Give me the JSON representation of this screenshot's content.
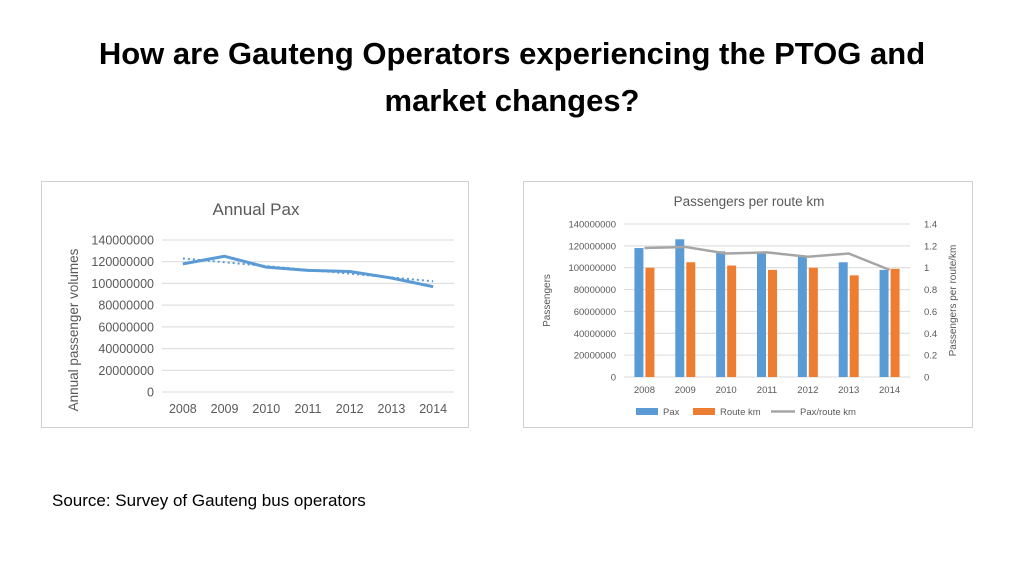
{
  "slide": {
    "title": "How are Gauteng Operators experiencing the PTOG and market changes?",
    "source": "Source: Survey of Gauteng bus operators"
  },
  "colors": {
    "pax_bar": "#5b9bd5",
    "route_bar": "#ed7d31",
    "ratio_line": "#a5a5a5",
    "annual_line": "#5b9bd5",
    "grid": "#d9d9d9",
    "axis_text": "#595959"
  },
  "chart_data": [
    {
      "type": "line",
      "title": "Annual Pax",
      "xlabel": "",
      "ylabel": "Annual passenger volumes",
      "categories": [
        "2008",
        "2009",
        "2010",
        "2011",
        "2012",
        "2013",
        "2014"
      ],
      "series": [
        {
          "values": [
            118000000,
            125000000,
            115000000,
            112000000,
            111000000,
            105000000,
            97000000
          ]
        }
      ],
      "trendline": {
        "style": "dotted",
        "values": [
          123000000,
          119500000,
          116000000,
          112500000,
          109000000,
          105500000,
          102000000
        ]
      },
      "ylim": [
        0,
        140000000
      ],
      "yticks": [
        "0",
        "20000000",
        "40000000",
        "60000000",
        "80000000",
        "100000000",
        "120000000",
        "140000000"
      ],
      "grid": true,
      "legend": "none"
    },
    {
      "type": "bar",
      "title": "Passengers per route km",
      "ylabel": "Passengers",
      "y2label": "Passengers per route/km",
      "categories": [
        "2008",
        "2009",
        "2010",
        "2011",
        "2012",
        "2013",
        "2014"
      ],
      "series": [
        {
          "name": "Pax",
          "type": "bar",
          "axis": "left",
          "values": [
            118000000,
            126000000,
            115000000,
            113000000,
            110000000,
            105000000,
            98000000
          ]
        },
        {
          "name": "Route km",
          "type": "bar",
          "axis": "left",
          "values": [
            100000000,
            105000000,
            102000000,
            98000000,
            100000000,
            93000000,
            99000000
          ]
        },
        {
          "name": "Pax/route km",
          "type": "line",
          "axis": "right",
          "values": [
            1.18,
            1.19,
            1.13,
            1.14,
            1.1,
            1.13,
            0.98
          ]
        }
      ],
      "ylim": [
        0,
        140000000
      ],
      "y2lim": [
        0,
        1.4
      ],
      "yticks": [
        "0",
        "20000000",
        "40000000",
        "60000000",
        "80000000",
        "100000000",
        "120000000",
        "140000000"
      ],
      "y2ticks": [
        "0",
        "0.2",
        "0.4",
        "0.6",
        "0.8",
        "1",
        "1.2",
        "1.4"
      ],
      "grid": true,
      "legend": "bottom"
    }
  ]
}
